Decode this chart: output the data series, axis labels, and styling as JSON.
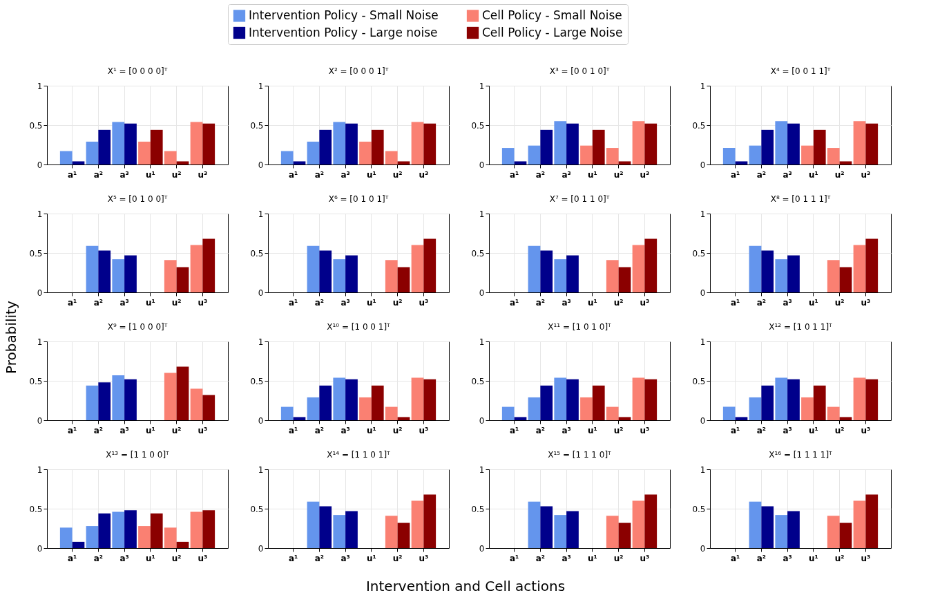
{
  "chart_data": [
    {
      "type": "bar",
      "title": "X¹ = [0 0 0 0]ᵀ",
      "legend": "top",
      "grid": true,
      "ylim": [
        0,
        1
      ],
      "yticks": [
        0,
        0.5,
        1
      ],
      "categories": [
        "a¹",
        "a²",
        "a³",
        "u¹",
        "u²",
        "u³"
      ],
      "series": [
        {
          "name": "Intervention Policy - Small Noise",
          "color": "#6495ed",
          "values": [
            0.17,
            0.29,
            0.54,
            null,
            null,
            null
          ]
        },
        {
          "name": "Intervention Policy - Large noise",
          "color": "#00008b",
          "values": [
            0.04,
            0.44,
            0.52,
            null,
            null,
            null
          ]
        },
        {
          "name": "Cell Policy - Small Noise",
          "color": "#fa8072",
          "values": [
            null,
            null,
            null,
            0.29,
            0.17,
            0.54
          ]
        },
        {
          "name": "Cell Policy - Large Noise",
          "color": "#8b0000",
          "values": [
            null,
            null,
            null,
            0.44,
            0.04,
            0.52
          ]
        }
      ]
    },
    {
      "type": "bar",
      "title": "X² = [0 0 0 1]ᵀ",
      "grid": true,
      "ylim": [
        0,
        1
      ],
      "yticks": [
        0,
        0.5,
        1
      ],
      "categories": [
        "a¹",
        "a²",
        "a³",
        "u¹",
        "u²",
        "u³"
      ],
      "series": [
        {
          "color": "#6495ed",
          "values": [
            0.17,
            0.29,
            0.54,
            null,
            null,
            null
          ]
        },
        {
          "color": "#00008b",
          "values": [
            0.04,
            0.44,
            0.52,
            null,
            null,
            null
          ]
        },
        {
          "color": "#fa8072",
          "values": [
            null,
            null,
            null,
            0.29,
            0.17,
            0.54
          ]
        },
        {
          "color": "#8b0000",
          "values": [
            null,
            null,
            null,
            0.44,
            0.04,
            0.52
          ]
        }
      ]
    },
    {
      "type": "bar",
      "title": "X³ = [0 0 1 0]ᵀ",
      "grid": true,
      "ylim": [
        0,
        1
      ],
      "yticks": [
        0,
        0.5,
        1
      ],
      "categories": [
        "a¹",
        "a²",
        "a³",
        "u¹",
        "u²",
        "u³"
      ],
      "series": [
        {
          "color": "#6495ed",
          "values": [
            0.21,
            0.24,
            0.55,
            null,
            null,
            null
          ]
        },
        {
          "color": "#00008b",
          "values": [
            0.04,
            0.44,
            0.52,
            null,
            null,
            null
          ]
        },
        {
          "color": "#fa8072",
          "values": [
            null,
            null,
            null,
            0.24,
            0.21,
            0.55
          ]
        },
        {
          "color": "#8b0000",
          "values": [
            null,
            null,
            null,
            0.44,
            0.04,
            0.52
          ]
        }
      ]
    },
    {
      "type": "bar",
      "title": "X⁴ = [0 0 1 1]ᵀ",
      "grid": true,
      "ylim": [
        0,
        1
      ],
      "yticks": [
        0,
        0.5,
        1
      ],
      "categories": [
        "a¹",
        "a²",
        "a³",
        "u¹",
        "u²",
        "u³"
      ],
      "series": [
        {
          "color": "#6495ed",
          "values": [
            0.21,
            0.24,
            0.55,
            null,
            null,
            null
          ]
        },
        {
          "color": "#00008b",
          "values": [
            0.04,
            0.44,
            0.52,
            null,
            null,
            null
          ]
        },
        {
          "color": "#fa8072",
          "values": [
            null,
            null,
            null,
            0.24,
            0.21,
            0.55
          ]
        },
        {
          "color": "#8b0000",
          "values": [
            null,
            null,
            null,
            0.44,
            0.04,
            0.52
          ]
        }
      ]
    },
    {
      "type": "bar",
      "title": "X⁵ = [0 1 0 0]ᵀ",
      "grid": true,
      "ylim": [
        0,
        1
      ],
      "yticks": [
        0,
        0.5,
        1
      ],
      "categories": [
        "a¹",
        "a²",
        "a³",
        "u¹",
        "u²",
        "u³"
      ],
      "series": [
        {
          "color": "#6495ed",
          "values": [
            0,
            0.59,
            0.42,
            null,
            null,
            null
          ]
        },
        {
          "color": "#00008b",
          "values": [
            0,
            0.53,
            0.47,
            null,
            null,
            null
          ]
        },
        {
          "color": "#fa8072",
          "values": [
            null,
            null,
            null,
            0,
            0.41,
            0.6
          ]
        },
        {
          "color": "#8b0000",
          "values": [
            null,
            null,
            null,
            0,
            0.32,
            0.68
          ]
        }
      ]
    },
    {
      "type": "bar",
      "title": "X⁶ = [0 1 0 1]ᵀ",
      "grid": true,
      "ylim": [
        0,
        1
      ],
      "yticks": [
        0,
        0.5,
        1
      ],
      "categories": [
        "a¹",
        "a²",
        "a³",
        "u¹",
        "u²",
        "u³"
      ],
      "series": [
        {
          "color": "#6495ed",
          "values": [
            0,
            0.59,
            0.42,
            null,
            null,
            null
          ]
        },
        {
          "color": "#00008b",
          "values": [
            0,
            0.53,
            0.47,
            null,
            null,
            null
          ]
        },
        {
          "color": "#fa8072",
          "values": [
            null,
            null,
            null,
            0,
            0.41,
            0.6
          ]
        },
        {
          "color": "#8b0000",
          "values": [
            null,
            null,
            null,
            0,
            0.32,
            0.68
          ]
        }
      ]
    },
    {
      "type": "bar",
      "title": "X⁷ = [0 1 1 0]ᵀ",
      "grid": true,
      "ylim": [
        0,
        1
      ],
      "yticks": [
        0,
        0.5,
        1
      ],
      "categories": [
        "a¹",
        "a²",
        "a³",
        "u¹",
        "u²",
        "u³"
      ],
      "series": [
        {
          "color": "#6495ed",
          "values": [
            0,
            0.59,
            0.42,
            null,
            null,
            null
          ]
        },
        {
          "color": "#00008b",
          "values": [
            0,
            0.53,
            0.47,
            null,
            null,
            null
          ]
        },
        {
          "color": "#fa8072",
          "values": [
            null,
            null,
            null,
            0,
            0.41,
            0.6
          ]
        },
        {
          "color": "#8b0000",
          "values": [
            null,
            null,
            null,
            0,
            0.32,
            0.68
          ]
        }
      ]
    },
    {
      "type": "bar",
      "title": "X⁸ = [0 1 1 1]ᵀ",
      "grid": true,
      "ylim": [
        0,
        1
      ],
      "yticks": [
        0,
        0.5,
        1
      ],
      "categories": [
        "a¹",
        "a²",
        "a³",
        "u¹",
        "u²",
        "u³"
      ],
      "series": [
        {
          "color": "#6495ed",
          "values": [
            0,
            0.59,
            0.42,
            null,
            null,
            null
          ]
        },
        {
          "color": "#00008b",
          "values": [
            0,
            0.53,
            0.47,
            null,
            null,
            null
          ]
        },
        {
          "color": "#fa8072",
          "values": [
            null,
            null,
            null,
            0,
            0.41,
            0.6
          ]
        },
        {
          "color": "#8b0000",
          "values": [
            null,
            null,
            null,
            0,
            0.32,
            0.68
          ]
        }
      ]
    },
    {
      "type": "bar",
      "title": "X⁹ = [1 0 0 0]ᵀ",
      "ylabel": "Probability",
      "grid": true,
      "ylim": [
        0,
        1
      ],
      "yticks": [
        0,
        0.5,
        1
      ],
      "categories": [
        "a¹",
        "a²",
        "a³",
        "u¹",
        "u²",
        "u³"
      ],
      "series": [
        {
          "color": "#6495ed",
          "values": [
            0,
            0.44,
            0.57,
            null,
            null,
            null
          ]
        },
        {
          "color": "#00008b",
          "values": [
            0,
            0.48,
            0.52,
            null,
            null,
            null
          ]
        },
        {
          "color": "#fa8072",
          "values": [
            null,
            null,
            null,
            0,
            0.6,
            0.4
          ]
        },
        {
          "color": "#8b0000",
          "values": [
            null,
            null,
            null,
            0,
            0.68,
            0.32
          ]
        }
      ]
    },
    {
      "type": "bar",
      "title": "X¹⁰ = [1 0 0 1]ᵀ",
      "grid": true,
      "ylim": [
        0,
        1
      ],
      "yticks": [
        0,
        0.5,
        1
      ],
      "categories": [
        "a¹",
        "a²",
        "a³",
        "u¹",
        "u²",
        "u³"
      ],
      "series": [
        {
          "color": "#6495ed",
          "values": [
            0.17,
            0.29,
            0.54,
            null,
            null,
            null
          ]
        },
        {
          "color": "#00008b",
          "values": [
            0.04,
            0.44,
            0.52,
            null,
            null,
            null
          ]
        },
        {
          "color": "#fa8072",
          "values": [
            null,
            null,
            null,
            0.29,
            0.17,
            0.54
          ]
        },
        {
          "color": "#8b0000",
          "values": [
            null,
            null,
            null,
            0.44,
            0.04,
            0.52
          ]
        }
      ]
    },
    {
      "type": "bar",
      "title": "X¹¹ = [1 0 1 0]ᵀ",
      "grid": true,
      "ylim": [
        0,
        1
      ],
      "yticks": [
        0,
        0.5,
        1
      ],
      "categories": [
        "a¹",
        "a²",
        "a³",
        "u¹",
        "u²",
        "u³"
      ],
      "series": [
        {
          "color": "#6495ed",
          "values": [
            0.17,
            0.29,
            0.54,
            null,
            null,
            null
          ]
        },
        {
          "color": "#00008b",
          "values": [
            0.04,
            0.44,
            0.52,
            null,
            null,
            null
          ]
        },
        {
          "color": "#fa8072",
          "values": [
            null,
            null,
            null,
            0.29,
            0.17,
            0.54
          ]
        },
        {
          "color": "#8b0000",
          "values": [
            null,
            null,
            null,
            0.44,
            0.04,
            0.52
          ]
        }
      ]
    },
    {
      "type": "bar",
      "title": "X¹² = [1 0 1 1]ᵀ",
      "grid": true,
      "ylim": [
        0,
        1
      ],
      "yticks": [
        0,
        0.5,
        1
      ],
      "categories": [
        "a¹",
        "a²",
        "a³",
        "u¹",
        "u²",
        "u³"
      ],
      "series": [
        {
          "color": "#6495ed",
          "values": [
            0.17,
            0.29,
            0.54,
            null,
            null,
            null
          ]
        },
        {
          "color": "#00008b",
          "values": [
            0.04,
            0.44,
            0.52,
            null,
            null,
            null
          ]
        },
        {
          "color": "#fa8072",
          "values": [
            null,
            null,
            null,
            0.29,
            0.17,
            0.54
          ]
        },
        {
          "color": "#8b0000",
          "values": [
            null,
            null,
            null,
            0.44,
            0.04,
            0.52
          ]
        }
      ]
    },
    {
      "type": "bar",
      "title": "X¹³ = [1 1 0 0]ᵀ",
      "grid": true,
      "ylim": [
        0,
        1
      ],
      "yticks": [
        0,
        0.5,
        1
      ],
      "categories": [
        "a¹",
        "a²",
        "a³",
        "u¹",
        "u²",
        "u³"
      ],
      "series": [
        {
          "color": "#6495ed",
          "values": [
            0.26,
            0.28,
            0.46,
            null,
            null,
            null
          ]
        },
        {
          "color": "#00008b",
          "values": [
            0.08,
            0.44,
            0.48,
            null,
            null,
            null
          ]
        },
        {
          "color": "#fa8072",
          "values": [
            null,
            null,
            null,
            0.28,
            0.26,
            0.46
          ]
        },
        {
          "color": "#8b0000",
          "values": [
            null,
            null,
            null,
            0.44,
            0.08,
            0.48
          ]
        }
      ]
    },
    {
      "type": "bar",
      "title": "X¹⁴ = [1 1 0 1]ᵀ",
      "xlabel": "Intervention and Cell actions",
      "grid": true,
      "ylim": [
        0,
        1
      ],
      "yticks": [
        0,
        0.5,
        1
      ],
      "categories": [
        "a¹",
        "a²",
        "a³",
        "u¹",
        "u²",
        "u³"
      ],
      "series": [
        {
          "color": "#6495ed",
          "values": [
            0,
            0.59,
            0.42,
            null,
            null,
            null
          ]
        },
        {
          "color": "#00008b",
          "values": [
            0,
            0.53,
            0.47,
            null,
            null,
            null
          ]
        },
        {
          "color": "#fa8072",
          "values": [
            null,
            null,
            null,
            0,
            0.41,
            0.6
          ]
        },
        {
          "color": "#8b0000",
          "values": [
            null,
            null,
            null,
            0,
            0.32,
            0.68
          ]
        }
      ]
    },
    {
      "type": "bar",
      "title": "X¹⁵ = [1 1 1 0]ᵀ",
      "grid": true,
      "ylim": [
        0,
        1
      ],
      "yticks": [
        0,
        0.5,
        1
      ],
      "categories": [
        "a¹",
        "a²",
        "a³",
        "u¹",
        "u²",
        "u³"
      ],
      "series": [
        {
          "color": "#6495ed",
          "values": [
            0,
            0.59,
            0.42,
            null,
            null,
            null
          ]
        },
        {
          "color": "#00008b",
          "values": [
            0,
            0.53,
            0.47,
            null,
            null,
            null
          ]
        },
        {
          "color": "#fa8072",
          "values": [
            null,
            null,
            null,
            0,
            0.41,
            0.6
          ]
        },
        {
          "color": "#8b0000",
          "values": [
            null,
            null,
            null,
            0,
            0.32,
            0.68
          ]
        }
      ]
    },
    {
      "type": "bar",
      "title": "X¹⁶ = [1 1 1 1]ᵀ",
      "grid": true,
      "ylim": [
        0,
        1
      ],
      "yticks": [
        0,
        0.5,
        1
      ],
      "categories": [
        "a¹",
        "a²",
        "a³",
        "u¹",
        "u²",
        "u³"
      ],
      "series": [
        {
          "color": "#6495ed",
          "values": [
            0,
            0.59,
            0.42,
            null,
            null,
            null
          ]
        },
        {
          "color": "#00008b",
          "values": [
            0,
            0.53,
            0.47,
            null,
            null,
            null
          ]
        },
        {
          "color": "#fa8072",
          "values": [
            null,
            null,
            null,
            0,
            0.41,
            0.6
          ]
        },
        {
          "color": "#8b0000",
          "values": [
            null,
            null,
            null,
            0,
            0.32,
            0.68
          ]
        }
      ]
    }
  ]
}
